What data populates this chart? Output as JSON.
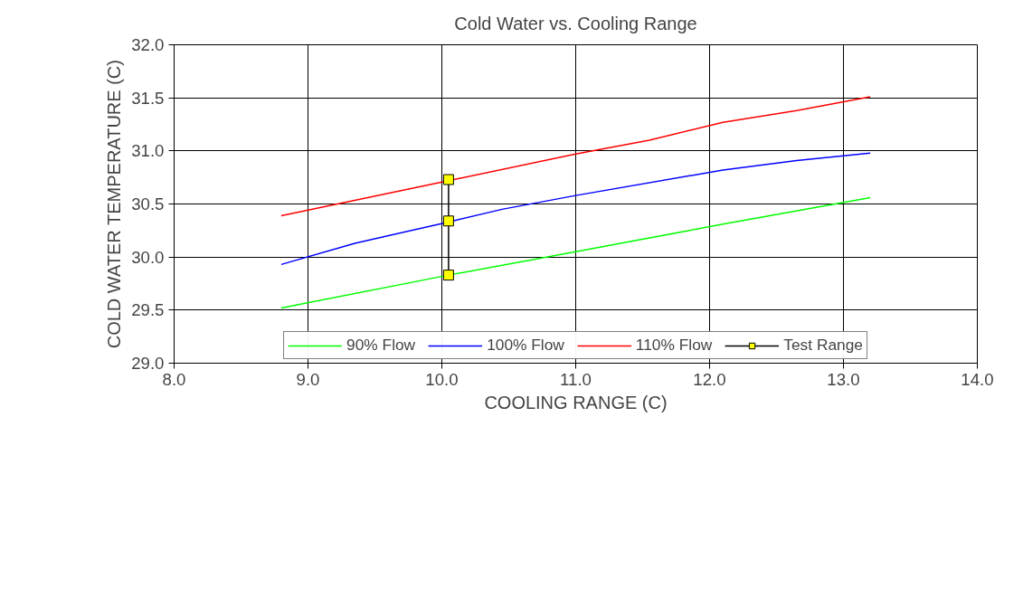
{
  "chart_data": {
    "type": "line",
    "title": "Cold Water vs. Cooling Range",
    "xlabel": "COOLING RANGE (C)",
    "ylabel": "COLD WATER TEMPERATURE (C)",
    "xlim": [
      8.0,
      14.0
    ],
    "xticks": [
      {
        "value": 8,
        "label": "8.0"
      },
      {
        "value": 9,
        "label": "9.0"
      },
      {
        "value": 10,
        "label": "10.0"
      },
      {
        "value": 11,
        "label": "11.0"
      },
      {
        "value": 12,
        "label": "12.0"
      },
      {
        "value": 13,
        "label": "13.0"
      },
      {
        "value": 14,
        "label": "14.0"
      }
    ],
    "ylim": [
      29.0,
      32.0
    ],
    "yticks": [
      {
        "value": 29,
        "label": "29.0"
      },
      {
        "value": 29.5,
        "label": "29.5"
      },
      {
        "value": 30,
        "label": "30.0"
      },
      {
        "value": 30.5,
        "label": "30.5"
      },
      {
        "value": 31,
        "label": "31.0"
      },
      {
        "value": 31.5,
        "label": "31.5"
      },
      {
        "value": 32,
        "label": "32.0"
      }
    ],
    "grid": true,
    "legend": "bottom",
    "series": [
      {
        "name": "90% Flow",
        "color": "#00ff00",
        "x": [
          8.8,
          10.05,
          11.0,
          12.1,
          13.2
        ],
        "values": [
          29.52,
          29.83,
          30.05,
          30.31,
          30.56
        ]
      },
      {
        "name": "100% Flow",
        "color": "#0000ff",
        "x": [
          8.8,
          9.35,
          10.05,
          10.45,
          11.0,
          12.1,
          12.65,
          13.2
        ],
        "values": [
          29.93,
          30.13,
          30.33,
          30.45,
          30.58,
          30.82,
          30.91,
          30.98
        ]
      },
      {
        "name": "110% Flow",
        "color": "#ff0000",
        "x": [
          8.8,
          10.05,
          11.0,
          11.55,
          12.1,
          12.65,
          13.2
        ],
        "values": [
          30.39,
          30.72,
          30.97,
          31.1,
          31.27,
          31.38,
          31.51
        ]
      },
      {
        "name": "Test Range",
        "color": "#000000",
        "marker": "square",
        "x": [
          10.05,
          10.05,
          10.05
        ],
        "values": [
          30.73,
          30.34,
          29.83
        ]
      }
    ]
  }
}
